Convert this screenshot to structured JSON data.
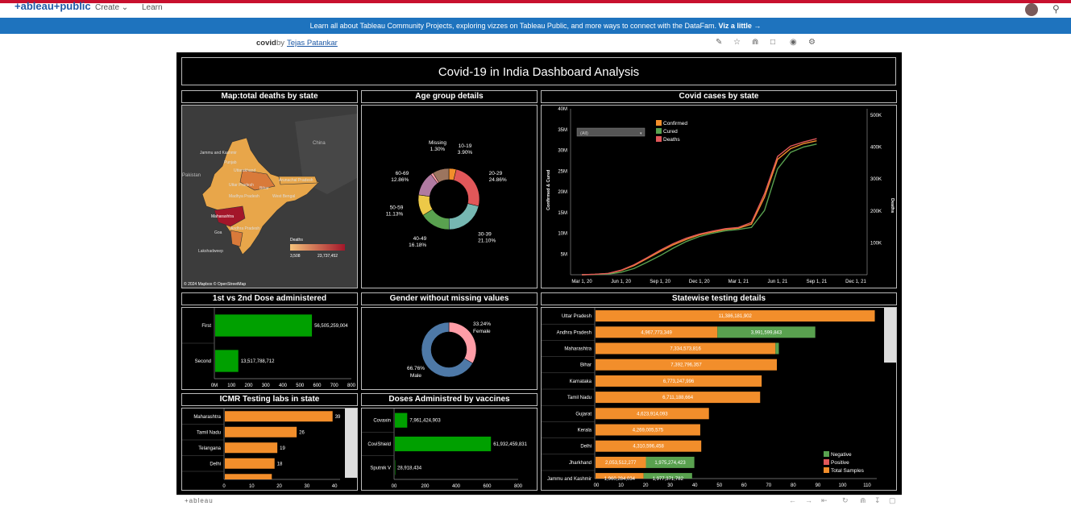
{
  "nav": {
    "logo": "+ableau+public",
    "create": "Create ⌄",
    "learn": "Learn"
  },
  "banner": {
    "text": "Learn all about Tableau Community Projects, exploring vizzes on Tableau Public, and more ways to connect with the DataFam.",
    "link": "Viz a little →"
  },
  "viz": {
    "name": "covid",
    "by": "by",
    "author": "Tejas Patankar"
  },
  "dashboard": {
    "title": "Covid-19 in India Dashboard Analysis",
    "panels": {
      "map": "Map:total deaths by state",
      "age": "Age group details",
      "cases": "Covid cases by state",
      "dose": "1st vs 2nd Dose administered",
      "gender": "Gender without missing values",
      "testing": "Statewise testing details",
      "icmr": "ICMR Testing labs in state",
      "vaccines": "Doses Administred by vaccines"
    }
  },
  "map": {
    "labels": [
      "China",
      "Pakistan",
      "Jammu and Kashmir",
      "Punjab",
      "Uttarakhand",
      "Uttar Pradesh",
      "Arunachal Pradesh",
      "Bihar",
      "West Bengal",
      "Madhya Pradesh",
      "Maharashtra",
      "Andhra Pradesh",
      "Goa",
      "Lakshadweep"
    ],
    "legend_title": "Deaths",
    "legend_min": "3,508",
    "legend_max": "23,737,452",
    "credits": "© 2024 Mapbox © OpenStreetMap",
    "highlight_color": "#a3162a",
    "base_color": "#e8a64a"
  },
  "chart_data": [
    {
      "id": "age",
      "type": "pie",
      "title": "Age group details",
      "slices": [
        {
          "label": "10-19",
          "pct": "3.90%",
          "value": 3.9,
          "color": "#f28e2b"
        },
        {
          "label": "20-29",
          "pct": "24.86%",
          "value": 24.86,
          "color": "#e15759"
        },
        {
          "label": "30-39",
          "pct": "21.10%",
          "value": 21.1,
          "color": "#76b7b2"
        },
        {
          "label": "40-49",
          "pct": "16.18%",
          "value": 16.18,
          "color": "#59a14f"
        },
        {
          "label": "50-59",
          "pct": "11.13%",
          "value": 11.13,
          "color": "#edc948"
        },
        {
          "label": "60-69",
          "pct": "12.86%",
          "value": 12.86,
          "color": "#b07aa1"
        },
        {
          "label": "Missing",
          "pct": "1.30%",
          "value": 1.3,
          "color": "#ff9da7"
        },
        {
          "label": "",
          "pct": "",
          "value": 8.67,
          "color": "#9c755f"
        }
      ]
    },
    {
      "id": "cases",
      "type": "line",
      "title": "Covid cases by state",
      "ylabel": "Confirmed & Cured",
      "y2label": "Deaths",
      "filter": "(All)",
      "x_ticks": [
        "Mar 1, 20",
        "Jun 1, 20",
        "Sep 1, 20",
        "Dec 1, 20",
        "Mar 1, 21",
        "Jun 1, 21",
        "Sep 1, 21",
        "Dec 1, 21"
      ],
      "y_ticks": [
        "5M",
        "10M",
        "15M",
        "20M",
        "25M",
        "30M",
        "35M",
        "40M"
      ],
      "y2_ticks": [
        "100K",
        "200K",
        "300K",
        "400K",
        "500K"
      ],
      "ylim": [
        0,
        40
      ],
      "legend": [
        {
          "name": "Confirmed",
          "color": "#f28e2b"
        },
        {
          "name": "Cured",
          "color": "#59a14f"
        },
        {
          "name": "Deaths",
          "color": "#e15759"
        }
      ],
      "x_months": [
        0,
        1,
        2,
        3,
        4,
        5,
        6,
        7,
        8,
        9,
        10,
        11,
        12,
        13,
        14,
        15,
        16,
        17,
        18
      ],
      "series": [
        {
          "name": "Confirmed",
          "color": "#f28e2b",
          "values": [
            0,
            0.1,
            0.3,
            1.0,
            2.2,
            3.9,
            5.6,
            7.2,
            8.5,
            9.6,
            10.3,
            10.9,
            11.2,
            12.2,
            18.7,
            27.8,
            30.4,
            31.6,
            32.3
          ]
        },
        {
          "name": "Cured",
          "color": "#59a14f",
          "values": [
            0,
            0.05,
            0.15,
            0.6,
            1.5,
            3.0,
            4.6,
            6.4,
            8.0,
            9.2,
            10.0,
            10.6,
            10.9,
            11.4,
            15.5,
            25.5,
            29.5,
            30.8,
            31.5
          ]
        },
        {
          "name": "Deaths",
          "color": "#e15759",
          "values": [
            0,
            0.1,
            0.3,
            1.1,
            2.4,
            4.1,
            5.9,
            7.5,
            8.8,
            9.8,
            10.5,
            11.1,
            11.4,
            12.6,
            19.5,
            28.5,
            31.0,
            32.0,
            32.8
          ]
        }
      ]
    },
    {
      "id": "dose",
      "type": "bar",
      "title": "1st vs 2nd Dose administered",
      "categories": [
        "First",
        "Second"
      ],
      "values": [
        56505259004,
        13517788712
      ],
      "value_labels": [
        "56,505,259,004",
        "13,517,788,712"
      ],
      "x_ticks": [
        "0M",
        "100",
        "200",
        "300",
        "400",
        "500",
        "600",
        "700",
        "800"
      ],
      "xlim": [
        0,
        80000000000
      ],
      "color": "#00a000"
    },
    {
      "id": "gender",
      "type": "pie",
      "title": "Gender without missing values",
      "slices": [
        {
          "label": "Female",
          "pct": "33.24%",
          "value": 33.24,
          "color": "#ff9da7"
        },
        {
          "label": "Male",
          "pct": "66.76%",
          "value": 66.76,
          "color": "#4e79a7"
        }
      ]
    },
    {
      "id": "testing",
      "type": "bar",
      "title": "Statewise testing details",
      "categories": [
        "Uttar Pradesh",
        "Andhra Pradesh",
        "Maharashtra",
        "Bihar",
        "Karnataka",
        "Tamil Nadu",
        "Gujarat",
        "Kerala",
        "Delhi",
        "Jharkhand",
        "Jammu and Kashmir"
      ],
      "x_ticks": [
        "00",
        "10",
        "20",
        "30",
        "40",
        "50",
        "60",
        "70",
        "80",
        "90",
        "100",
        "110"
      ],
      "xlim": [
        0,
        11500000000
      ],
      "legend": [
        {
          "name": "Negative",
          "color": "#59a14f"
        },
        {
          "name": "Positive",
          "color": "#e15759"
        },
        {
          "name": "Total Samples",
          "color": "#f28e2b"
        }
      ],
      "series": [
        {
          "name": "Total Samples",
          "color": "#f28e2b",
          "values": [
            11386181902,
            4967773349,
            7334573816,
            7392796357,
            6773247996,
            6711188664,
            4623914093,
            4269005575,
            4310596458,
            2053512277,
            1960284034
          ],
          "labels": [
            "11,386,181,902",
            "4,967,773,349",
            "7,334,573,816",
            "7,392,796,357",
            "6,773,247,996",
            "6,711,188,664",
            "4,623,914,093",
            "4,269,005,575",
            "4,310,596,458",
            "2,053,512,277",
            "1,960,284,034"
          ]
        },
        {
          "name": "Negative",
          "color": "#59a14f",
          "values": [
            0,
            3991599843,
            140000000,
            0,
            0,
            0,
            0,
            0,
            0,
            1975274423,
            1977371782
          ],
          "labels": [
            "",
            "3,991,599,843",
            "",
            "",
            "",
            "",
            "",
            "",
            "",
            "1,975,274,423",
            "1,977,371,782"
          ]
        }
      ]
    },
    {
      "id": "icmr",
      "type": "bar",
      "title": "ICMR Testing labs in state",
      "categories": [
        "Maharashtra",
        "Tamil Nadu",
        "Telangana",
        "Delhi",
        ""
      ],
      "values": [
        39,
        26,
        19,
        18,
        17
      ],
      "value_labels": [
        "39",
        "26",
        "19",
        "18",
        ""
      ],
      "x_ticks": [
        "0",
        "10",
        "20",
        "30",
        "40"
      ],
      "xlim": [
        0,
        42
      ],
      "color": "#f28e2b"
    },
    {
      "id": "vaccines",
      "type": "bar",
      "title": "Doses Administred by vaccines",
      "categories": [
        "Covaxin",
        "CoviShield",
        "Sputnik V"
      ],
      "values": [
        7961424903,
        61932459831,
        28918434
      ],
      "value_labels": [
        "7,961,424,903",
        "61,932,459,831",
        "28,918,434"
      ],
      "x_ticks": [
        "00",
        "200",
        "400",
        "600",
        "800"
      ],
      "xlim": [
        0,
        80000000000
      ],
      "color": "#00a000"
    }
  ],
  "footer": {
    "wordmark": "+ableau"
  }
}
